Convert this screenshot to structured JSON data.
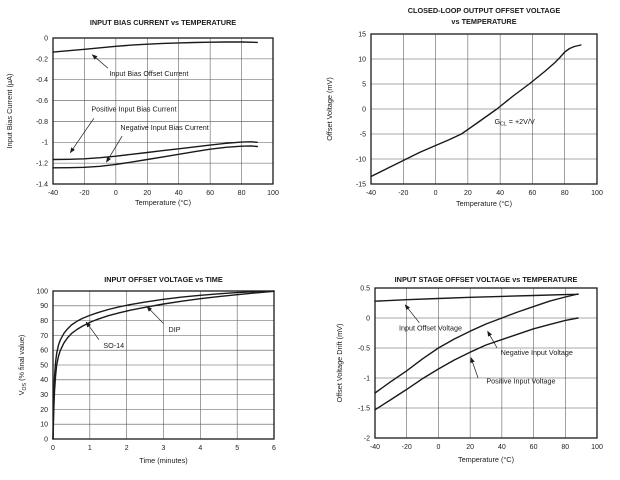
{
  "page": {
    "background": "#ffffff",
    "ink": "#1a1a1a",
    "grid_color": "#555555"
  },
  "chart_data": [
    {
      "id": "input-bias-current-vs-temperature",
      "type": "line",
      "title_lines": [
        "INPUT BIAS CURRENT vs TEMPERATURE"
      ],
      "xlabel": "Temperature (°C)",
      "ylabel": "Input Bias Current (µA)",
      "xlim": [
        -40,
        100
      ],
      "ylim": [
        -1.4,
        0
      ],
      "xticks": [
        {
          "v": -40,
          "t": "-40"
        },
        {
          "v": -20,
          "t": "-20"
        },
        {
          "v": 0,
          "t": "0"
        },
        {
          "v": 20,
          "t": "20"
        },
        {
          "v": 40,
          "t": "40"
        },
        {
          "v": 60,
          "t": "60"
        },
        {
          "v": 80,
          "t": "80"
        },
        {
          "v": 100,
          "t": "100"
        }
      ],
      "yticks": [
        {
          "v": 0,
          "t": "0"
        },
        {
          "v": -0.2,
          "t": "-0.2"
        },
        {
          "v": -0.4,
          "t": "-0.4"
        },
        {
          "v": -0.6,
          "t": "-0.6"
        },
        {
          "v": -0.8,
          "t": "-0.8"
        },
        {
          "v": -1,
          "t": "-1"
        },
        {
          "v": -1.2,
          "t": "-1.2"
        },
        {
          "v": -1.4,
          "t": "-1.4"
        }
      ],
      "series": [
        {
          "name": "Input Bias Offset Current",
          "points": [
            [
              -40,
              -0.135
            ],
            [
              -30,
              -0.122
            ],
            [
              -20,
              -0.108
            ],
            [
              -10,
              -0.094
            ],
            [
              0,
              -0.08
            ],
            [
              10,
              -0.068
            ],
            [
              20,
              -0.059
            ],
            [
              30,
              -0.052
            ],
            [
              40,
              -0.047
            ],
            [
              50,
              -0.043
            ],
            [
              60,
              -0.04
            ],
            [
              70,
              -0.038
            ],
            [
              80,
              -0.038
            ],
            [
              90,
              -0.042
            ]
          ]
        },
        {
          "name": "Positive Input Bias Current",
          "points": [
            [
              -40,
              -1.165
            ],
            [
              -30,
              -1.163
            ],
            [
              -20,
              -1.158
            ],
            [
              -10,
              -1.148
            ],
            [
              0,
              -1.133
            ],
            [
              10,
              -1.115
            ],
            [
              20,
              -1.098
            ],
            [
              30,
              -1.08
            ],
            [
              40,
              -1.062
            ],
            [
              50,
              -1.044
            ],
            [
              60,
              -1.027
            ],
            [
              70,
              -1.01
            ],
            [
              80,
              -0.998
            ],
            [
              86,
              -0.995
            ],
            [
              90,
              -1.0
            ]
          ]
        },
        {
          "name": "Negative Input Bias Current",
          "points": [
            [
              -40,
              -1.245
            ],
            [
              -30,
              -1.244
            ],
            [
              -20,
              -1.24
            ],
            [
              -10,
              -1.23
            ],
            [
              0,
              -1.212
            ],
            [
              10,
              -1.19
            ],
            [
              20,
              -1.165
            ],
            [
              30,
              -1.14
            ],
            [
              40,
              -1.115
            ],
            [
              50,
              -1.09
            ],
            [
              60,
              -1.066
            ],
            [
              70,
              -1.048
            ],
            [
              80,
              -1.038
            ],
            [
              86,
              -1.035
            ],
            [
              90,
              -1.04
            ]
          ]
        }
      ],
      "callouts": [
        {
          "text": "Input Bias Offset Current",
          "x": 21,
          "y": -0.34,
          "arrow": [
            [
              -5,
              -0.29
            ],
            [
              -15,
              -0.16
            ]
          ]
        },
        {
          "text": "Positive Input Bias Current",
          "x": 11.5,
          "y": -0.68,
          "arrow": [
            [
              -14,
              -0.77
            ],
            [
              -29,
              -1.1
            ]
          ]
        },
        {
          "text": "Negative Input Bias Current",
          "x": 31,
          "y": -0.86,
          "arrow": [
            [
              4,
              -0.94
            ],
            [
              -6,
              -1.19
            ]
          ]
        }
      ],
      "annotations": []
    },
    {
      "id": "closed-loop-output-offset-voltage-vs-temperature",
      "type": "line",
      "title_lines": [
        "CLOSED-LOOP OUTPUT OFFSET VOLTAGE",
        "vs TEMPERATURE"
      ],
      "xlabel": "Temperature (°C)",
      "ylabel": "Offset Voltage (mV)",
      "xlim": [
        -40,
        100
      ],
      "ylim": [
        -15,
        15
      ],
      "xticks": [
        {
          "v": -40,
          "t": "-40"
        },
        {
          "v": -20,
          "t": "-20"
        },
        {
          "v": 0,
          "t": "0"
        },
        {
          "v": 20,
          "t": "20"
        },
        {
          "v": 40,
          "t": "40"
        },
        {
          "v": 60,
          "t": "60"
        },
        {
          "v": 80,
          "t": "80"
        },
        {
          "v": 100,
          "t": "100"
        }
      ],
      "yticks": [
        {
          "v": 15,
          "t": "15"
        },
        {
          "v": 10,
          "t": "10"
        },
        {
          "v": 5,
          "t": "5"
        },
        {
          "v": 0,
          "t": "0"
        },
        {
          "v": -5,
          "t": "-5"
        },
        {
          "v": -10,
          "t": "-10"
        },
        {
          "v": -15,
          "t": "-15"
        }
      ],
      "series": [
        {
          "name": "Closed-Loop Output Offset Voltage",
          "points": [
            [
              -40,
              -13.5
            ],
            [
              -30,
              -11.9
            ],
            [
              -20,
              -10.3
            ],
            [
              -10,
              -8.7
            ],
            [
              0,
              -7.3
            ],
            [
              8,
              -6.2
            ],
            [
              16,
              -5.0
            ],
            [
              24,
              -3.2
            ],
            [
              31,
              -1.6
            ],
            [
              38,
              0.0
            ],
            [
              48,
              2.6
            ],
            [
              58,
              5.0
            ],
            [
              68,
              7.6
            ],
            [
              74,
              9.3
            ],
            [
              77,
              10.3
            ],
            [
              80,
              11.4
            ],
            [
              83,
              12.1
            ],
            [
              86,
              12.5
            ],
            [
              90,
              12.8
            ]
          ]
        }
      ],
      "callouts": [],
      "annotations": [
        {
          "text": "G~CL~ = +2V/V",
          "x": 49,
          "y": -2.5
        }
      ]
    },
    {
      "id": "input-offset-voltage-vs-time",
      "type": "line",
      "title_lines": [
        "INPUT OFFSET VOLTAGE vs TIME"
      ],
      "xlabel": "Time (minutes)",
      "ylabel": "V~OS~ (% final value)",
      "xlim": [
        0,
        6
      ],
      "ylim": [
        0,
        100
      ],
      "xticks": [
        {
          "v": 0,
          "t": "0"
        },
        {
          "v": 1,
          "t": "1"
        },
        {
          "v": 2,
          "t": "2"
        },
        {
          "v": 3,
          "t": "3"
        },
        {
          "v": 4,
          "t": "4"
        },
        {
          "v": 5,
          "t": "5"
        },
        {
          "v": 6,
          "t": "6"
        }
      ],
      "yticks": [
        {
          "v": 100,
          "t": "100"
        },
        {
          "v": 90,
          "t": "90"
        },
        {
          "v": 80,
          "t": "80"
        },
        {
          "v": 70,
          "t": "70"
        },
        {
          "v": 60,
          "t": "60"
        },
        {
          "v": 50,
          "t": "50"
        },
        {
          "v": 40,
          "t": "40"
        },
        {
          "v": 30,
          "t": "30"
        },
        {
          "v": 20,
          "t": "20"
        },
        {
          "v": 10,
          "t": "10"
        },
        {
          "v": 0,
          "t": "0"
        }
      ],
      "series": [
        {
          "name": "SO-14",
          "points": [
            [
              0,
              0
            ],
            [
              0.02,
              25
            ],
            [
              0.04,
              42
            ],
            [
              0.07,
              52
            ],
            [
              0.1,
              58
            ],
            [
              0.15,
              63.5
            ],
            [
              0.2,
              67
            ],
            [
              0.3,
              71.5
            ],
            [
              0.4,
              74.5
            ],
            [
              0.5,
              77
            ],
            [
              0.65,
              79.5
            ],
            [
              0.8,
              81.5
            ],
            [
              1.0,
              83.5
            ],
            [
              1.2,
              85.3
            ],
            [
              1.5,
              87.5
            ],
            [
              1.8,
              89.3
            ],
            [
              2.1,
              90.8
            ],
            [
              2.5,
              92.5
            ],
            [
              3.0,
              94.4
            ],
            [
              3.5,
              95.9
            ],
            [
              4.0,
              97.1
            ],
            [
              4.5,
              98.1
            ],
            [
              5.0,
              98.9
            ],
            [
              5.5,
              99.5
            ],
            [
              6.0,
              99.9
            ]
          ]
        },
        {
          "name": "DIP",
          "points": [
            [
              0,
              0
            ],
            [
              0.02,
              18
            ],
            [
              0.04,
              32
            ],
            [
              0.07,
              43
            ],
            [
              0.1,
              50
            ],
            [
              0.15,
              56
            ],
            [
              0.2,
              60
            ],
            [
              0.3,
              65
            ],
            [
              0.4,
              68.5
            ],
            [
              0.5,
              71.2
            ],
            [
              0.65,
              74
            ],
            [
              0.8,
              76.3
            ],
            [
              1.0,
              78.8
            ],
            [
              1.2,
              80.8
            ],
            [
              1.5,
              83.3
            ],
            [
              1.8,
              85.3
            ],
            [
              2.1,
              87
            ],
            [
              2.5,
              89
            ],
            [
              3.0,
              91.2
            ],
            [
              3.5,
              93.1
            ],
            [
              4.0,
              94.8
            ],
            [
              4.5,
              96.2
            ],
            [
              5.0,
              97.5
            ],
            [
              5.5,
              98.7
            ],
            [
              6.0,
              99.8
            ]
          ]
        }
      ],
      "callouts": [
        {
          "text": "SO-14",
          "x": 1.65,
          "y": 63,
          "arrow": [
            [
              1.25,
              67
            ],
            [
              0.9,
              79
            ]
          ]
        },
        {
          "text": "DIP",
          "x": 3.3,
          "y": 74,
          "arrow": [
            [
              3.0,
              78
            ],
            [
              2.55,
              89.5
            ]
          ]
        }
      ],
      "annotations": []
    },
    {
      "id": "input-stage-offset-voltage-vs-temperature",
      "type": "line",
      "title_lines": [
        "INPUT STAGE OFFSET VOLTAGE vs TEMPERATURE"
      ],
      "xlabel": "Temperature (°C)",
      "ylabel": "Offset Voltage Drift (mV)",
      "xlim": [
        -40,
        100
      ],
      "ylim": [
        -2,
        0.5
      ],
      "xticks": [
        {
          "v": -40,
          "t": "-40"
        },
        {
          "v": -20,
          "t": "-20"
        },
        {
          "v": 0,
          "t": "0"
        },
        {
          "v": 20,
          "t": "20"
        },
        {
          "v": 40,
          "t": "40"
        },
        {
          "v": 60,
          "t": "60"
        },
        {
          "v": 80,
          "t": "80"
        },
        {
          "v": 100,
          "t": "100"
        }
      ],
      "yticks": [
        {
          "v": 0.5,
          "t": "0.5"
        },
        {
          "v": 0,
          "t": "0"
        },
        {
          "v": -0.5,
          "t": "-0.5"
        },
        {
          "v": -1,
          "t": "-1"
        },
        {
          "v": -1.5,
          "t": "-1.5"
        },
        {
          "v": -2,
          "t": "-2"
        }
      ],
      "series": [
        {
          "name": "Input Offset Voltage",
          "points": [
            [
              -40,
              0.28
            ],
            [
              -20,
              0.305
            ],
            [
              0,
              0.325
            ],
            [
              20,
              0.345
            ],
            [
              40,
              0.36
            ],
            [
              60,
              0.375
            ],
            [
              80,
              0.39
            ],
            [
              88,
              0.395
            ]
          ]
        },
        {
          "name": "Negative Input Voltage",
          "points": [
            [
              -40,
              -1.25
            ],
            [
              -30,
              -1.06
            ],
            [
              -20,
              -0.88
            ],
            [
              -10,
              -0.68
            ],
            [
              0,
              -0.5
            ],
            [
              10,
              -0.35
            ],
            [
              20,
              -0.22
            ],
            [
              30,
              -0.1
            ],
            [
              40,
              0.0
            ],
            [
              50,
              0.1
            ],
            [
              60,
              0.19
            ],
            [
              70,
              0.28
            ],
            [
              80,
              0.35
            ],
            [
              88,
              0.4
            ]
          ]
        },
        {
          "name": "Positive Input Voltage",
          "points": [
            [
              -40,
              -1.53
            ],
            [
              -30,
              -1.36
            ],
            [
              -20,
              -1.19
            ],
            [
              -10,
              -1.01
            ],
            [
              0,
              -0.85
            ],
            [
              10,
              -0.7
            ],
            [
              20,
              -0.57
            ],
            [
              30,
              -0.45
            ],
            [
              40,
              -0.36
            ],
            [
              50,
              -0.27
            ],
            [
              60,
              -0.18
            ],
            [
              70,
              -0.11
            ],
            [
              80,
              -0.04
            ],
            [
              88,
              0.0
            ]
          ]
        }
      ],
      "callouts": [
        {
          "text": "Input Offset Voltage",
          "x": -5,
          "y": -0.17,
          "arrow": [
            [
              -12,
              -0.08
            ],
            [
              -21,
              0.22
            ]
          ]
        },
        {
          "text": "Negative Input Voltage",
          "x": 62,
          "y": -0.58,
          "arrow": [
            [
              37,
              -0.5
            ],
            [
              31,
              -0.22
            ]
          ]
        },
        {
          "text": "Positive Input Voltage",
          "x": 52,
          "y": -1.05,
          "arrow": [
            [
              25,
              -1.0
            ],
            [
              20.5,
              -0.66
            ]
          ]
        }
      ],
      "annotations": []
    }
  ]
}
